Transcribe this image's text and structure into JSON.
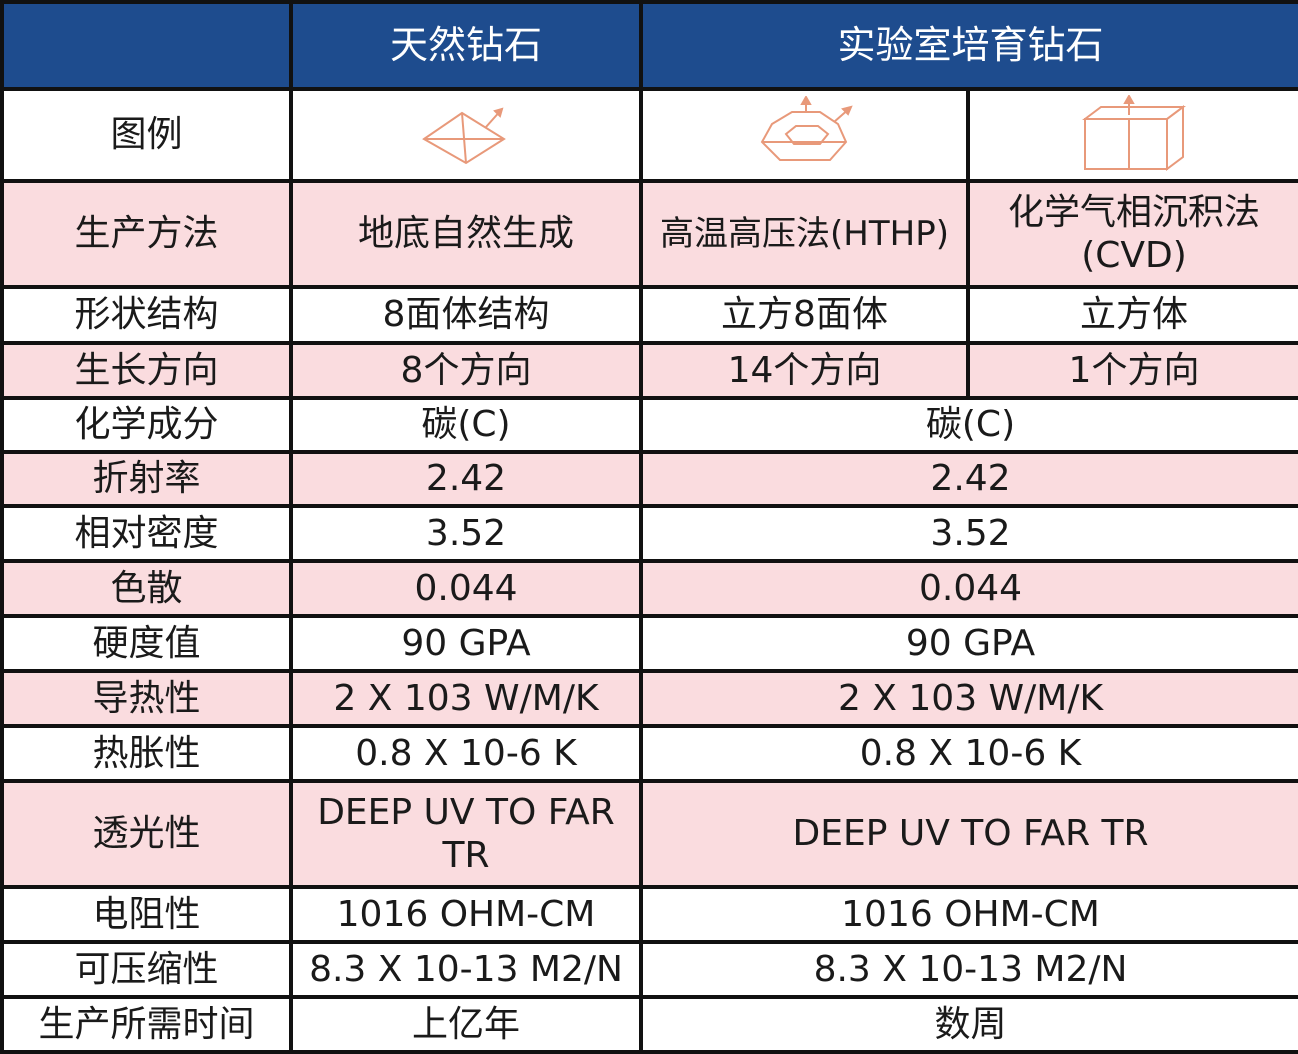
{
  "header": {
    "natural": "天然钻石",
    "lab": "实验室培育钻石"
  },
  "illustration_row": {
    "label": "图例",
    "icons": [
      "octahedron-icon",
      "cuboctahedron-icon",
      "cube-icon"
    ]
  },
  "rows": [
    {
      "label": "生产方法",
      "natural": "地底自然生成",
      "hthp": "高温高压法(HTHP)",
      "cvd": "化学气相沉积法(CVD)"
    },
    {
      "label": "形状结构",
      "natural": "8面体结构",
      "hthp": "立方8面体",
      "cvd": "立方体"
    },
    {
      "label": "生长方向",
      "natural": "8个方向",
      "hthp": "14个方向",
      "cvd": "1个方向"
    },
    {
      "label": "化学成分",
      "natural": "碳(C)",
      "lab": "碳(C)"
    },
    {
      "label": "折射率",
      "natural": "2.42",
      "lab": "2.42"
    },
    {
      "label": "相对密度",
      "natural": "3.52",
      "lab": "3.52"
    },
    {
      "label": "色散",
      "natural": "0.044",
      "lab": "0.044"
    },
    {
      "label": "硬度值",
      "natural": "90 GPA",
      "lab": "90 GPA"
    },
    {
      "label": "导热性",
      "natural": "2 X 103 W/M/K",
      "lab": "2 X 103 W/M/K"
    },
    {
      "label": "热胀性",
      "natural": "0.8 X 10-6 K",
      "lab": "0.8 X 10-6 K"
    },
    {
      "label": "透光性",
      "natural": "DEEP UV TO FAR TR",
      "lab": "DEEP UV TO FAR TR"
    },
    {
      "label": "电阻性",
      "natural": "1016 OHM-CM",
      "lab": "1016 OHM-CM"
    },
    {
      "label": "可压缩性",
      "natural": "8.3 X 10-13 M2/N",
      "lab": "8.3 X 10-13 M2/N"
    },
    {
      "label": "生产所需时间",
      "natural": "上亿年",
      "lab": "数周"
    }
  ],
  "colors": {
    "header_bg": "#1e4c8e",
    "pink_row": "#fadcdf",
    "icon_stroke": "#e8997a"
  }
}
